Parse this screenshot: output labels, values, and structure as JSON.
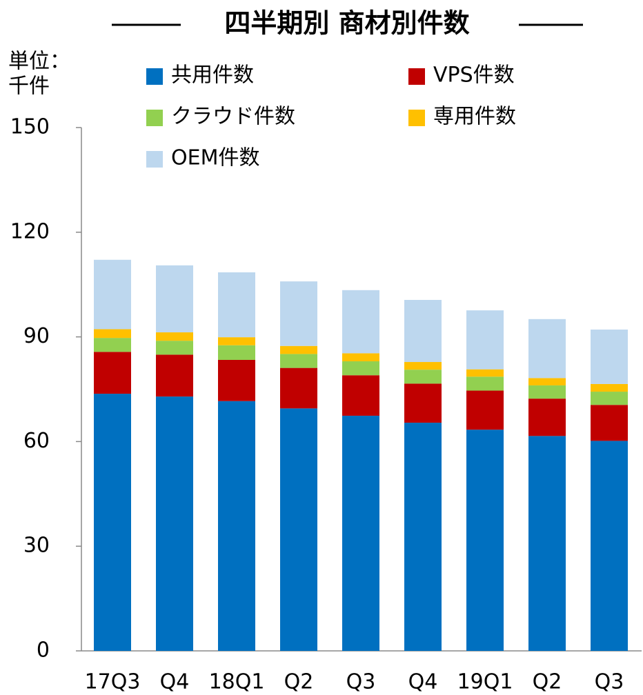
{
  "chart_data": {
    "type": "stacked_bar",
    "title": "四半期別 商材別件数",
    "y_label": [
      "単位：",
      "千件"
    ],
    "categories": [
      "17Q3",
      "Q4",
      "18Q1",
      "Q2",
      "Q3",
      "Q4",
      "19Q1",
      "Q2",
      "Q3"
    ],
    "series": [
      {
        "name": "共用件数",
        "color": "#0070c0",
        "values": [
          73.7,
          72.9,
          71.6,
          69.5,
          67.4,
          65.4,
          63.4,
          61.6,
          60.2
        ]
      },
      {
        "name": "VPS件数",
        "color": "#c00000",
        "values": [
          12.0,
          12.0,
          11.8,
          11.6,
          11.6,
          11.2,
          11.2,
          10.7,
          10.3
        ]
      },
      {
        "name": "クラウド件数",
        "color": "#92d050",
        "values": [
          4.0,
          4.0,
          4.2,
          4.0,
          4.0,
          4.0,
          4.0,
          3.8,
          3.8
        ]
      },
      {
        "name": "専用件数",
        "color": "#ffc000",
        "values": [
          2.5,
          2.4,
          2.3,
          2.3,
          2.3,
          2.2,
          2.1,
          2.1,
          2.2
        ]
      },
      {
        "name": "OEM件数",
        "color": "#bdd7ee",
        "values": [
          19.9,
          19.2,
          18.6,
          18.5,
          18.1,
          17.8,
          16.9,
          16.9,
          15.6
        ]
      }
    ],
    "ylim": [
      0,
      150
    ],
    "yticks": [
      0,
      30,
      60,
      90,
      120,
      150
    ],
    "grid": false,
    "legend_position": "top"
  }
}
